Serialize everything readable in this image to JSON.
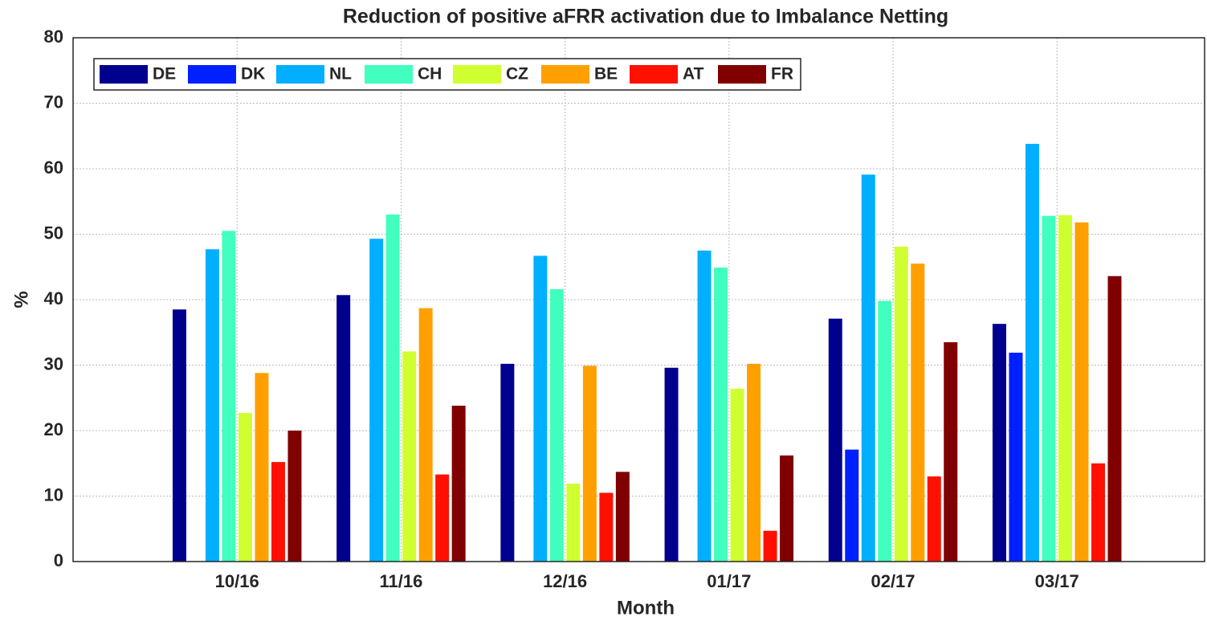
{
  "chart_data": {
    "type": "bar",
    "title": "Reduction of positive aFRR activation due to Imbalance Netting",
    "x_label": "Month",
    "y_label": "%",
    "categories": [
      "10/16",
      "11/16",
      "12/16",
      "01/17",
      "02/17",
      "03/17"
    ],
    "series": [
      {
        "name": "DE",
        "color": "#00008f",
        "values": [
          38.5,
          40.7,
          30.2,
          29.6,
          37.1,
          36.3
        ]
      },
      {
        "name": "DK",
        "color": "#0020ff",
        "values": [
          null,
          null,
          null,
          null,
          17.1,
          31.9
        ]
      },
      {
        "name": "NL",
        "color": "#00afff",
        "values": [
          47.7,
          49.3,
          46.7,
          47.5,
          59.1,
          63.8
        ]
      },
      {
        "name": "CH",
        "color": "#40ffbf",
        "values": [
          50.5,
          53.0,
          41.6,
          44.9,
          39.8,
          52.8
        ]
      },
      {
        "name": "CZ",
        "color": "#cfff30",
        "values": [
          22.7,
          32.1,
          11.9,
          26.4,
          48.1,
          52.9
        ]
      },
      {
        "name": "BE",
        "color": "#ffa000",
        "values": [
          28.8,
          38.7,
          29.9,
          30.2,
          45.5,
          51.8
        ]
      },
      {
        "name": "AT",
        "color": "#ff1000",
        "values": [
          15.2,
          13.3,
          10.5,
          4.7,
          13.0,
          15.0
        ]
      },
      {
        "name": "FR",
        "color": "#800000",
        "values": [
          20.0,
          23.8,
          13.7,
          16.2,
          33.5,
          43.6
        ]
      }
    ],
    "ylim": [
      0,
      80
    ],
    "yticks": [
      0,
      10,
      20,
      30,
      40,
      50,
      60,
      70,
      80
    ],
    "grid": true,
    "legend_position": "northwest"
  }
}
